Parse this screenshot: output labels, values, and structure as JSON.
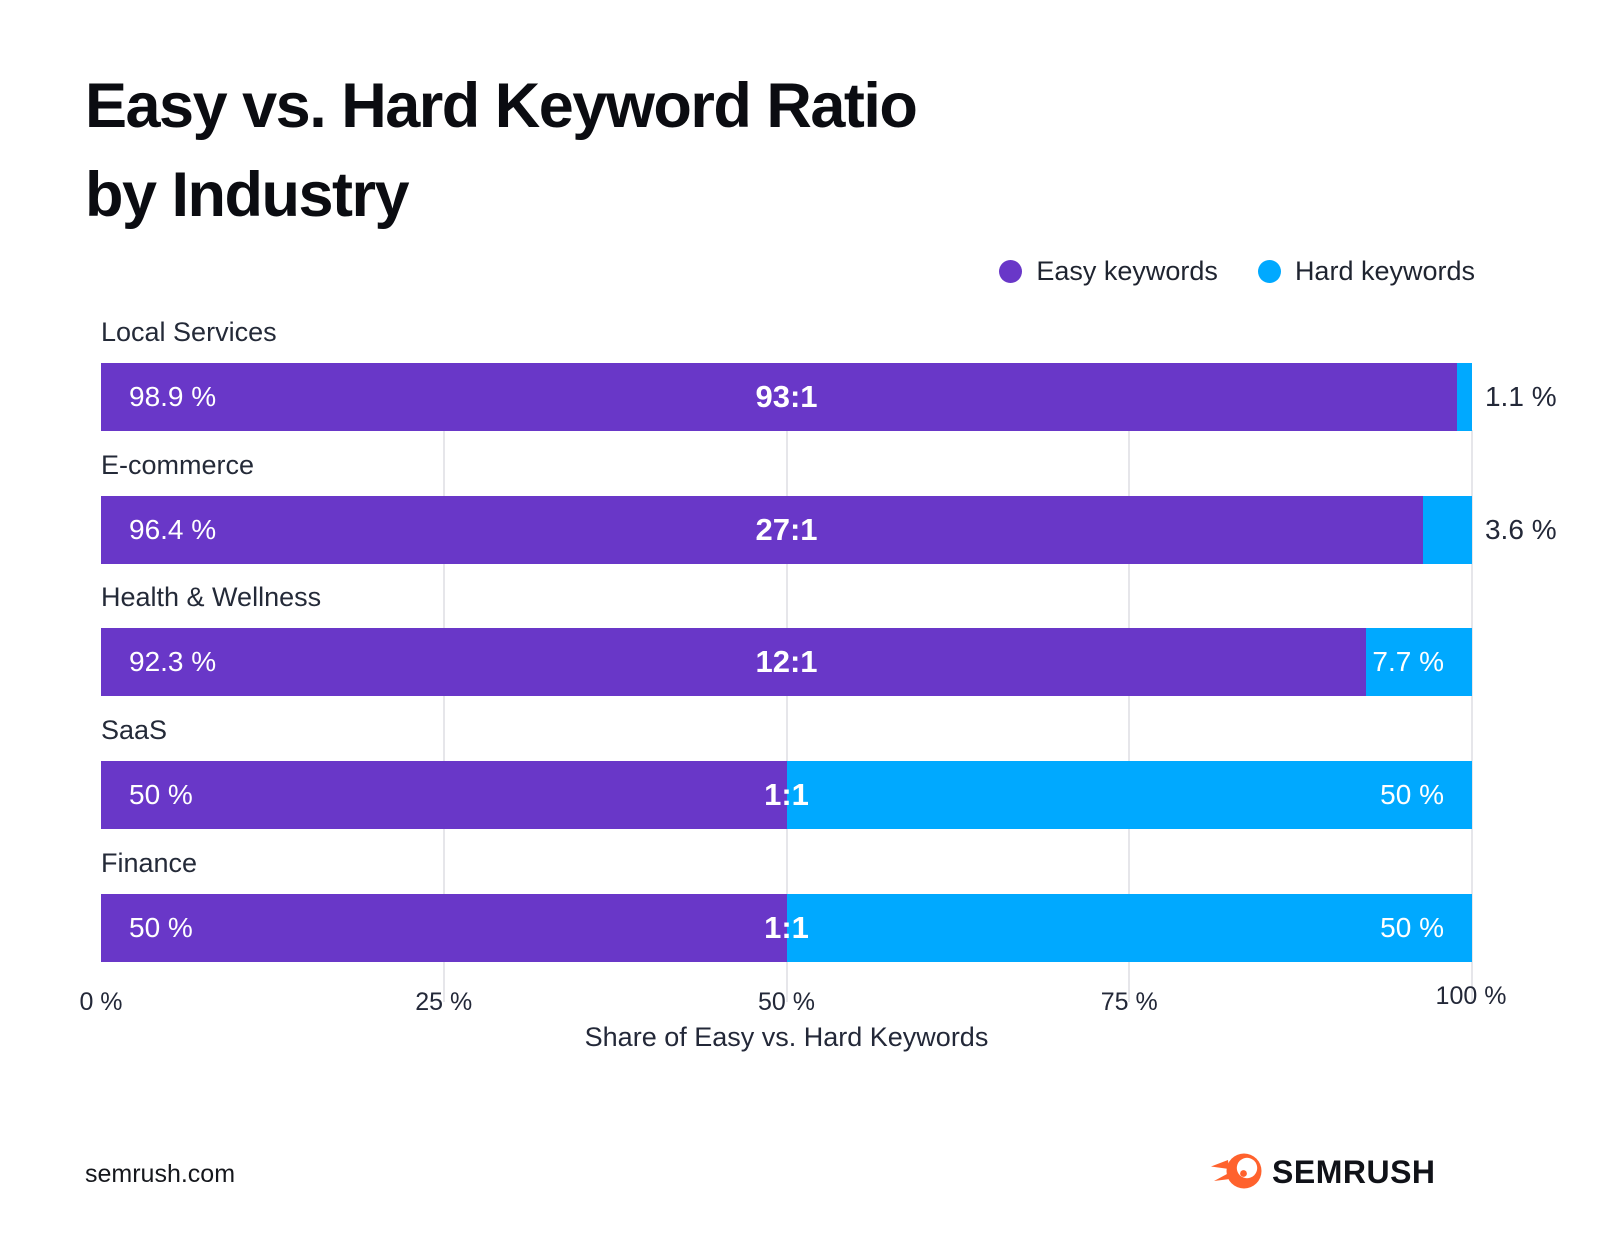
{
  "page": {
    "title_line1": "Easy vs. Hard Keyword Ratio",
    "title_line2": "by Industry"
  },
  "legend": {
    "items": [
      {
        "label": "Easy keywords",
        "color": "#6937C8"
      },
      {
        "label": "Hard keywords",
        "color": "#00A9FF"
      }
    ]
  },
  "chart_data": {
    "type": "bar",
    "orientation": "horizontal",
    "stacked": true,
    "title": "Easy vs. Hard Keyword Ratio by Industry",
    "xlabel": "Share of Easy vs. Hard Keywords",
    "xlim": [
      0,
      100
    ],
    "x_ticks": [
      "0 %",
      "25 %",
      "50 %",
      "75 %",
      "100 %"
    ],
    "x_tick_values": [
      0,
      25,
      50,
      75,
      100
    ],
    "grid": "vertical",
    "legend_position": "top-right",
    "categories": [
      "Local Services",
      "E-commerce",
      "Health & Wellness",
      "SaaS",
      "Finance"
    ],
    "series": [
      {
        "name": "Easy keywords",
        "color": "#6937C8",
        "values": [
          98.9,
          96.4,
          92.3,
          50,
          50
        ]
      },
      {
        "name": "Hard keywords",
        "color": "#00A9FF",
        "values": [
          1.1,
          3.6,
          7.7,
          50,
          50
        ]
      }
    ],
    "bar_labels": {
      "easy": [
        "98.9 %",
        "96.4 %",
        "92.3 %",
        "50 %",
        "50 %"
      ],
      "hard": [
        "1.1 %",
        "3.6 %",
        "7.7 %",
        "50 %",
        "50 %"
      ],
      "ratio": [
        "93:1",
        "27:1",
        "12:1",
        "1:1",
        "1:1"
      ]
    }
  },
  "footer": {
    "site": "semrush.com",
    "brand": "SEMRUSH"
  },
  "colors": {
    "easy": "#6937C8",
    "hard": "#00A9FF",
    "grid": "#E6E6EA",
    "text_dark": "#232838",
    "brand_orange": "#FF622D"
  }
}
